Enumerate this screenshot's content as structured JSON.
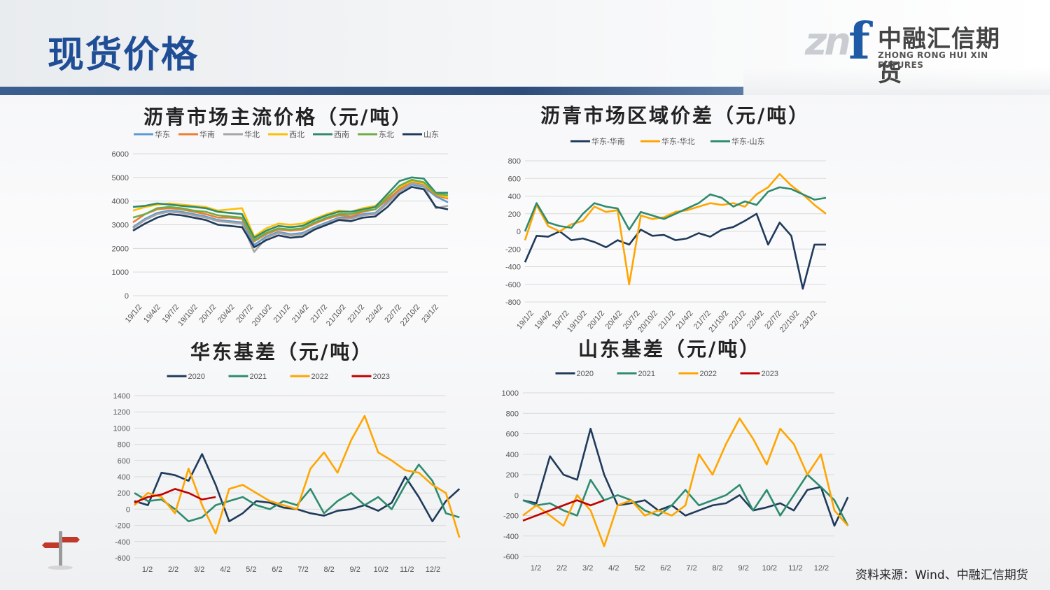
{
  "page": {
    "title": "现货价格",
    "source": "资料来源：Wind、中融汇信期货"
  },
  "logo": {
    "mark": "zn",
    "mark_f": "f",
    "cn": "中融汇信期货",
    "en": "ZHONG RONG HUI XIN FUTURES"
  },
  "chart_data": [
    {
      "id": "c1",
      "type": "line",
      "title": "沥青市场主流价格（元/吨）",
      "ylim": [
        0,
        6000
      ],
      "yticks": [
        0,
        1000,
        2000,
        3000,
        4000,
        5000,
        6000
      ],
      "xticks": [
        "19/1/2",
        "19/4/2",
        "19/7/2",
        "19/10/2",
        "20/1/2",
        "20/4/2",
        "20/7/2",
        "20/10/2",
        "21/1/2",
        "21/4/2",
        "21/7/2",
        "21/10/2",
        "22/1/2",
        "22/4/2",
        "22/7/2",
        "22/10/2",
        "23/1/2"
      ],
      "x": [
        0,
        2,
        4,
        6,
        8,
        10,
        12,
        14,
        16,
        18,
        20,
        22,
        24,
        26,
        28,
        30,
        32,
        34,
        36,
        38,
        40,
        42,
        44,
        46,
        48,
        50,
        52
      ],
      "xlim": [
        0,
        52
      ],
      "legend_position": "top",
      "series": [
        {
          "name": "华东",
          "color": "#5b9bd5",
          "values": [
            2900,
            3250,
            3500,
            3600,
            3550,
            3450,
            3350,
            3200,
            3150,
            3100,
            2150,
            2500,
            2700,
            2600,
            2650,
            2900,
            3100,
            3300,
            3300,
            3450,
            3500,
            3950,
            4400,
            4700,
            4600,
            4200,
            3950
          ]
        },
        {
          "name": "华南",
          "color": "#ed7d31",
          "values": [
            3100,
            3450,
            3650,
            3700,
            3650,
            3550,
            3450,
            3300,
            3300,
            3250,
            2300,
            2600,
            2800,
            2750,
            2800,
            3050,
            3250,
            3400,
            3350,
            3550,
            3650,
            4050,
            4500,
            4800,
            4700,
            4250,
            4100
          ]
        },
        {
          "name": "华北",
          "color": "#a5a5a5",
          "values": [
            2850,
            3200,
            3450,
            3550,
            3500,
            3400,
            3300,
            3150,
            3100,
            3050,
            1850,
            2450,
            2650,
            2550,
            2600,
            2850,
            3050,
            3250,
            3250,
            3400,
            3450,
            3900,
            4400,
            4750,
            4650,
            3700,
            3800
          ]
        },
        {
          "name": "西北",
          "color": "#ffc000",
          "values": [
            3600,
            3750,
            3850,
            3900,
            3850,
            3800,
            3750,
            3600,
            3650,
            3700,
            2500,
            2850,
            3050,
            3000,
            3050,
            3250,
            3450,
            3600,
            3550,
            3700,
            3800,
            4200,
            4600,
            4850,
            4750,
            4300,
            4150
          ]
        },
        {
          "name": "西南",
          "color": "#2e8b6e",
          "values": [
            3750,
            3800,
            3900,
            3850,
            3800,
            3750,
            3700,
            3550,
            3500,
            3450,
            2450,
            2750,
            2950,
            2900,
            2950,
            3200,
            3400,
            3550,
            3550,
            3650,
            3750,
            4300,
            4850,
            5000,
            4950,
            4350,
            4350
          ]
        },
        {
          "name": "东北",
          "color": "#70ad47",
          "values": [
            3300,
            3450,
            3700,
            3750,
            3700,
            3600,
            3550,
            3400,
            3350,
            3300,
            2350,
            2650,
            2850,
            2800,
            2850,
            3100,
            3300,
            3450,
            3450,
            3600,
            3650,
            4150,
            4650,
            4900,
            4800,
            4300,
            4250
          ]
        },
        {
          "name": "山东",
          "color": "#1f3a5a",
          "values": [
            2750,
            3050,
            3300,
            3450,
            3400,
            3300,
            3200,
            3000,
            2950,
            2900,
            2050,
            2350,
            2550,
            2450,
            2500,
            2800,
            3000,
            3200,
            3150,
            3300,
            3350,
            3750,
            4300,
            4600,
            4500,
            3750,
            3650
          ]
        }
      ]
    },
    {
      "id": "c2",
      "type": "line",
      "title": "沥青市场区域价差（元/吨）",
      "ylim": [
        -800,
        800
      ],
      "yticks": [
        -800,
        -600,
        -400,
        -200,
        0,
        200,
        400,
        600,
        800
      ],
      "xticks": [
        "19/1/2",
        "19/4/2",
        "19/7/2",
        "19/10/2",
        "20/1/2",
        "20/4/2",
        "20/7/2",
        "20/10/2",
        "21/1/2",
        "21/4/2",
        "21/7/2",
        "21/10/2",
        "22/1/2",
        "22/4/2",
        "22/7/2",
        "22/10/2",
        "23/1/2"
      ],
      "x": [
        0,
        2,
        4,
        6,
        8,
        10,
        12,
        14,
        16,
        18,
        20,
        22,
        24,
        26,
        28,
        30,
        32,
        34,
        36,
        38,
        40,
        42,
        44,
        46,
        48,
        50,
        52
      ],
      "xlim": [
        0,
        52
      ],
      "legend_position": "top",
      "series": [
        {
          "name": "华东-华南",
          "color": "#1f3a5a",
          "values": [
            -350,
            -50,
            -60,
            0,
            -100,
            -80,
            -120,
            -180,
            -100,
            -150,
            20,
            -50,
            -40,
            -100,
            -80,
            -20,
            -60,
            20,
            50,
            120,
            200,
            -150,
            100,
            -50,
            -650,
            -150,
            -150
          ]
        },
        {
          "name": "华东-华北",
          "color": "#ffa500",
          "values": [
            -100,
            300,
            60,
            0,
            80,
            120,
            280,
            220,
            240,
            -600,
            180,
            140,
            160,
            220,
            240,
            280,
            320,
            300,
            320,
            280,
            420,
            500,
            650,
            520,
            420,
            300,
            200
          ]
        },
        {
          "name": "华东-山东",
          "color": "#2e8b6e",
          "values": [
            0,
            320,
            100,
            60,
            40,
            200,
            320,
            280,
            260,
            20,
            220,
            180,
            140,
            200,
            260,
            320,
            420,
            380,
            280,
            340,
            300,
            450,
            500,
            480,
            420,
            360,
            380
          ]
        }
      ]
    },
    {
      "id": "c3",
      "type": "line",
      "title": "华东基差（元/吨）",
      "ylim": [
        -600,
        1400
      ],
      "yticks": [
        -600,
        -400,
        -200,
        0,
        200,
        400,
        600,
        800,
        1000,
        1200,
        1400
      ],
      "xticks": [
        "1/2",
        "2/2",
        "3/2",
        "4/2",
        "5/2",
        "6/2",
        "7/2",
        "8/2",
        "9/2",
        "10/2",
        "11/2",
        "12/2"
      ],
      "x": [
        0,
        1,
        2,
        3,
        4,
        5,
        6,
        7,
        8,
        9,
        10,
        11,
        12,
        13,
        14,
        15,
        16,
        17,
        18,
        19,
        20,
        21,
        22,
        23,
        24
      ],
      "xlim": [
        0,
        23
      ],
      "legend_position": "top",
      "series": [
        {
          "name": "2020",
          "color": "#1f3a5a",
          "values": [
            100,
            50,
            450,
            420,
            350,
            680,
            300,
            -150,
            -50,
            100,
            80,
            20,
            0,
            -50,
            -80,
            -20,
            0,
            50,
            -20,
            80,
            400,
            150,
            -150,
            100,
            250
          ]
        },
        {
          "name": "2021",
          "color": "#2e8b6e",
          "values": [
            200,
            100,
            120,
            0,
            -150,
            -100,
            50,
            100,
            150,
            50,
            0,
            100,
            50,
            250,
            -50,
            100,
            200,
            50,
            150,
            0,
            300,
            550,
            350,
            -50,
            -100
          ]
        },
        {
          "name": "2022",
          "color": "#ffa500",
          "values": [
            50,
            200,
            150,
            -50,
            500,
            50,
            -300,
            250,
            300,
            200,
            100,
            50,
            0,
            500,
            700,
            450,
            850,
            1150,
            700,
            600,
            480,
            450,
            300,
            200,
            -350
          ]
        },
        {
          "name": "2023",
          "color": "#c00000",
          "values": [
            80,
            150,
            180,
            250,
            200,
            120,
            150,
            null,
            null,
            null,
            null,
            null,
            null,
            null,
            null,
            null,
            null,
            null,
            null,
            null,
            null,
            null,
            null,
            null,
            null
          ]
        }
      ]
    },
    {
      "id": "c4",
      "type": "line",
      "title": "山东基差（元/吨）",
      "ylim": [
        -600,
        1000
      ],
      "yticks": [
        -600,
        -400,
        -200,
        0,
        200,
        400,
        600,
        800,
        1000
      ],
      "xticks": [
        "1/2",
        "2/2",
        "3/2",
        "4/2",
        "5/2",
        "6/2",
        "7/2",
        "8/2",
        "9/2",
        "10/2",
        "11/2",
        "12/2"
      ],
      "x": [
        0,
        1,
        2,
        3,
        4,
        5,
        6,
        7,
        8,
        9,
        10,
        11,
        12,
        13,
        14,
        15,
        16,
        17,
        18,
        19,
        20,
        21,
        22,
        23,
        24
      ],
      "xlim": [
        0,
        23
      ],
      "legend_position": "top",
      "series": [
        {
          "name": "2020",
          "color": "#1f3a5a",
          "values": [
            -50,
            -80,
            380,
            200,
            150,
            650,
            200,
            -100,
            -80,
            -50,
            -150,
            -100,
            -200,
            -150,
            -100,
            -80,
            0,
            -150,
            -120,
            -80,
            -150,
            50,
            80,
            -300,
            -20
          ]
        },
        {
          "name": "2021",
          "color": "#2e8b6e",
          "values": [
            -50,
            -100,
            -80,
            -150,
            -200,
            150,
            -50,
            0,
            -50,
            -150,
            -200,
            -100,
            50,
            -100,
            -50,
            0,
            100,
            -150,
            50,
            -200,
            0,
            200,
            80,
            -50,
            -300
          ]
        },
        {
          "name": "2022",
          "color": "#ffa500",
          "values": [
            -200,
            -100,
            -200,
            -300,
            0,
            -150,
            -500,
            -100,
            -50,
            -200,
            -150,
            -200,
            -100,
            400,
            200,
            500,
            750,
            550,
            300,
            650,
            500,
            200,
            400,
            -150,
            -300
          ]
        },
        {
          "name": "2023",
          "color": "#c00000",
          "values": [
            -250,
            -200,
            -150,
            -100,
            -50,
            -100,
            -50,
            null,
            null,
            null,
            null,
            null,
            null,
            null,
            null,
            null,
            null,
            null,
            null,
            null,
            null,
            null,
            null,
            null,
            null
          ]
        }
      ]
    }
  ]
}
